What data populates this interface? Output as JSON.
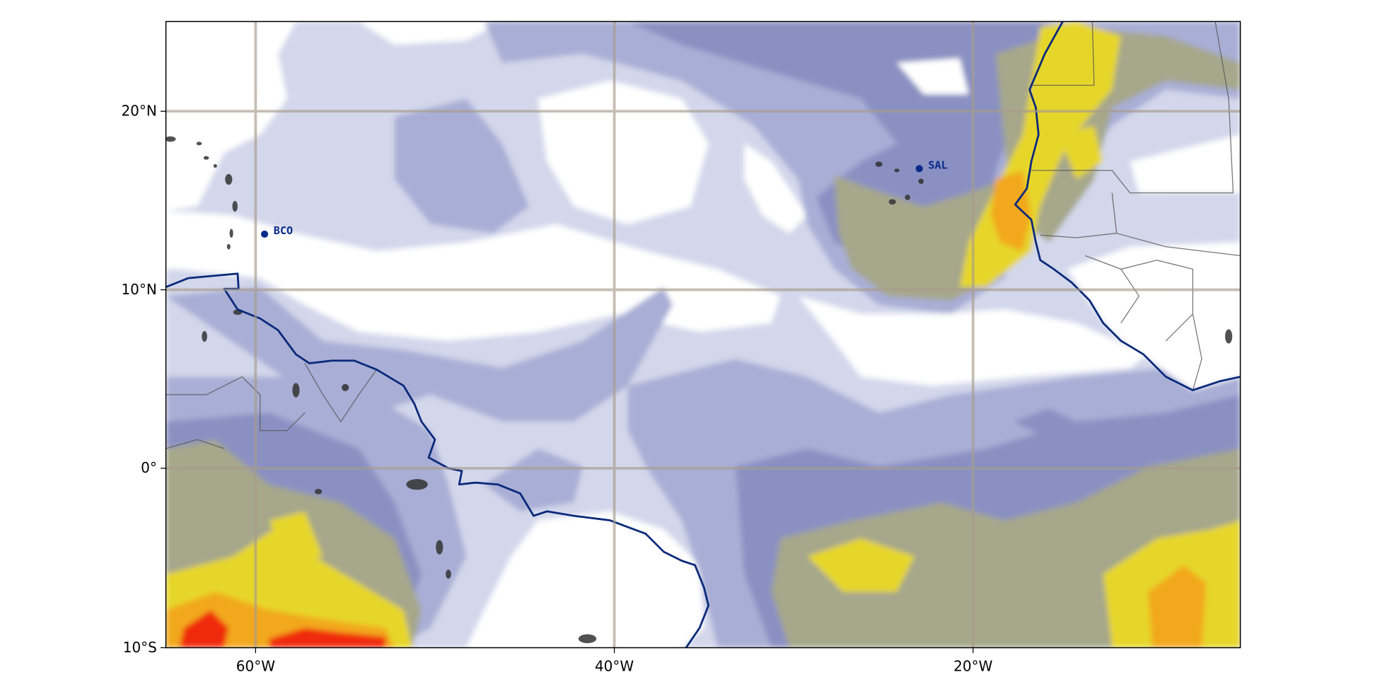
{
  "map": {
    "extent": {
      "lon_min": -65,
      "lon_max": -5,
      "lat_min": -10,
      "lat_max": 25
    },
    "x_ticks": [
      {
        "lon": -60,
        "label": "60°W"
      },
      {
        "lon": -40,
        "label": "40°W"
      },
      {
        "lon": -20,
        "label": "20°W"
      }
    ],
    "y_ticks": [
      {
        "lat": 20,
        "label": "20°N"
      },
      {
        "lat": 10,
        "label": "10°N"
      },
      {
        "lat": 0,
        "label": "0°"
      },
      {
        "lat": -10,
        "label": "10°S"
      }
    ],
    "gridlines": true,
    "stations": [
      {
        "name": "BCO",
        "lon": -59.4,
        "lat": 13.2
      },
      {
        "name": "SAL",
        "lon": -22.9,
        "lat": 16.7
      }
    ],
    "colors": {
      "level_1": "#d3d7eb",
      "level_2": "#a9aed6",
      "level_3": "#8a91c2",
      "level_4": "#a6a78b",
      "level_5": "#e6d62a",
      "level_6": "#f2a81a",
      "level_7": "#f02a08",
      "coastline": "#0a2a7a",
      "station": "#0a2a8a",
      "grid": "#a89c8c"
    }
  }
}
